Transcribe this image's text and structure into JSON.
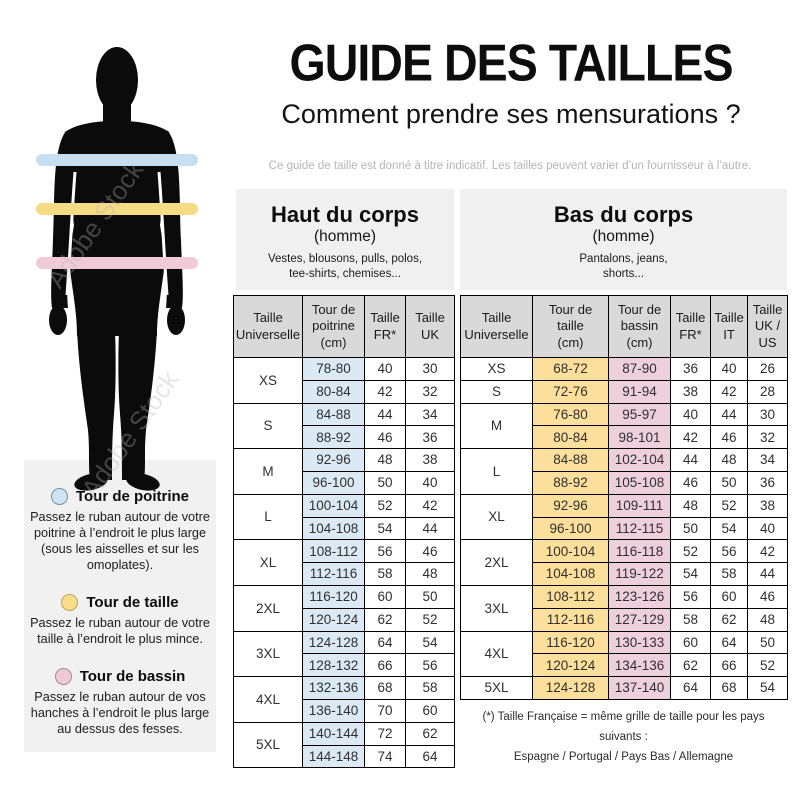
{
  "header": {
    "title": "GUIDE DES TAILLES",
    "subtitle": "Comment prendre ses mensurations ?",
    "disclaimer": "Ce guide de taille est donné à titre indicatif. Les tailles peuvent varier d’un fournisseur à l’autre."
  },
  "watermark": "Adobe Stock",
  "figure": {
    "bands": [
      {
        "name": "chest-band",
        "color": "#c5dff0"
      },
      {
        "name": "waist-band",
        "color": "#f6db85"
      },
      {
        "name": "hips-band",
        "color": "#f0cbd7"
      }
    ]
  },
  "legend": {
    "items": [
      {
        "title": "Tour de poitrine",
        "color": "#cfe4f2",
        "border": "#6b93ae",
        "description": "Passez le ruban autour de votre poitrine à l’endroit le plus large (sous les aisselles et sur les omoplates)."
      },
      {
        "title": "Tour de taille",
        "color": "#f8dd8a",
        "border": "#c0a254",
        "description": "Passez le ruban autour de votre taille à l’endroit le plus mince."
      },
      {
        "title": "Tour de bassin",
        "color": "#f0c9d6",
        "border": "#a08d96",
        "description": "Passez le ruban autour de vos hanches à l’endroit le plus large au dessus des fesses."
      }
    ]
  },
  "tables": [
    {
      "id": "upper",
      "title": "Haut du corps",
      "subtitle": "(homme)",
      "description": "Vestes, blousons, pulls, polos,\ntee-shirts, chemises...",
      "columns": [
        {
          "label": "Taille\nUniverselle",
          "bg": "#ffffff"
        },
        {
          "label": "Tour de\npoitrine\n(cm)",
          "bg": "#dbe9f5"
        },
        {
          "label": "Taille\nFR*",
          "bg": "#ffffff"
        },
        {
          "label": "Taille\nUK",
          "bg": "#ffffff"
        }
      ],
      "groups": [
        {
          "size": "XS",
          "rows": [
            [
              "78-80",
              "40",
              "30"
            ],
            [
              "80-84",
              "42",
              "32"
            ]
          ]
        },
        {
          "size": "S",
          "rows": [
            [
              "84-88",
              "44",
              "34"
            ],
            [
              "88-92",
              "46",
              "36"
            ]
          ]
        },
        {
          "size": "M",
          "rows": [
            [
              "92-96",
              "48",
              "38"
            ],
            [
              "96-100",
              "50",
              "40"
            ]
          ]
        },
        {
          "size": "L",
          "rows": [
            [
              "100-104",
              "52",
              "42"
            ],
            [
              "104-108",
              "54",
              "44"
            ]
          ]
        },
        {
          "size": "XL",
          "rows": [
            [
              "108-112",
              "56",
              "46"
            ],
            [
              "112-116",
              "58",
              "48"
            ]
          ]
        },
        {
          "size": "2XL",
          "rows": [
            [
              "116-120",
              "60",
              "50"
            ],
            [
              "120-124",
              "62",
              "52"
            ]
          ]
        },
        {
          "size": "3XL",
          "rows": [
            [
              "124-128",
              "64",
              "54"
            ],
            [
              "128-132",
              "66",
              "56"
            ]
          ]
        },
        {
          "size": "4XL",
          "rows": [
            [
              "132-136",
              "68",
              "58"
            ],
            [
              "136-140",
              "70",
              "60"
            ]
          ]
        },
        {
          "size": "5XL",
          "rows": [
            [
              "140-144",
              "72",
              "62"
            ],
            [
              "144-148",
              "74",
              "64"
            ]
          ]
        }
      ]
    },
    {
      "id": "lower",
      "title": "Bas du corps",
      "subtitle": "(homme)",
      "description": "Pantalons, jeans,\nshorts...",
      "columns": [
        {
          "label": "Taille\nUniverselle",
          "bg": "#ffffff"
        },
        {
          "label": "Tour de\ntaille\n(cm)",
          "bg": "#fcdf9b"
        },
        {
          "label": "Tour de\nbassin\n(cm)",
          "bg": "#edd0dc"
        },
        {
          "label": "Taille\nFR*",
          "bg": "#ffffff"
        },
        {
          "label": "Taille\nIT",
          "bg": "#ffffff"
        },
        {
          "label": "Taille\nUK /\nUS",
          "bg": "#ffffff"
        }
      ],
      "groups": [
        {
          "size": "XS",
          "rows": [
            [
              "68-72",
              "87-90",
              "36",
              "40",
              "26"
            ]
          ]
        },
        {
          "size": "S",
          "rows": [
            [
              "72-76",
              "91-94",
              "38",
              "42",
              "28"
            ]
          ]
        },
        {
          "size": "M",
          "rows": [
            [
              "76-80",
              "95-97",
              "40",
              "44",
              "30"
            ],
            [
              "80-84",
              "98-101",
              "42",
              "46",
              "32"
            ]
          ]
        },
        {
          "size": "L",
          "rows": [
            [
              "84-88",
              "102-104",
              "44",
              "48",
              "34"
            ],
            [
              "88-92",
              "105-108",
              "46",
              "50",
              "36"
            ]
          ]
        },
        {
          "size": "XL",
          "rows": [
            [
              "92-96",
              "109-111",
              "48",
              "52",
              "38"
            ],
            [
              "96-100",
              "112-115",
              "50",
              "54",
              "40"
            ]
          ]
        },
        {
          "size": "2XL",
          "rows": [
            [
              "100-104",
              "116-118",
              "52",
              "56",
              "42"
            ],
            [
              "104-108",
              "119-122",
              "54",
              "58",
              "44"
            ]
          ]
        },
        {
          "size": "3XL",
          "rows": [
            [
              "108-112",
              "123-126",
              "56",
              "60",
              "46"
            ],
            [
              "112-116",
              "127-129",
              "58",
              "62",
              "48"
            ]
          ]
        },
        {
          "size": "4XL",
          "rows": [
            [
              "116-120",
              "130-133",
              "60",
              "64",
              "50"
            ],
            [
              "120-124",
              "134-136",
              "62",
              "66",
              "52"
            ]
          ]
        },
        {
          "size": "5XL",
          "rows": [
            [
              "124-128",
              "137-140",
              "64",
              "68",
              "54"
            ]
          ]
        }
      ]
    }
  ],
  "footnote": {
    "line1": "(*) Taille Française = même grille de taille pour les pays suivants :",
    "line2": "Espagne / Portugal / Pays Bas / Allemagne"
  }
}
